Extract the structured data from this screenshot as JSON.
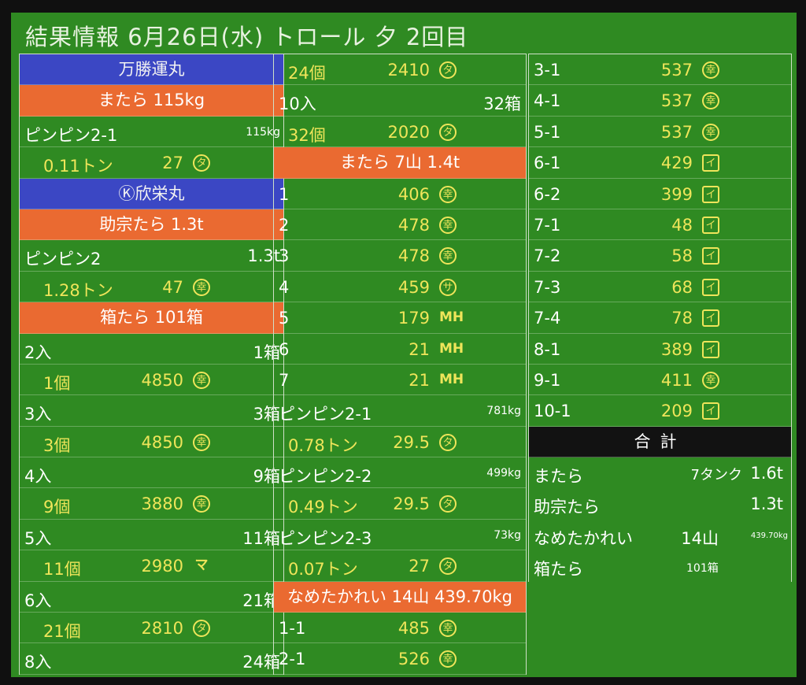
{
  "header": {
    "title": "結果情報 6月26日(水) トロール 夕 2回目"
  },
  "col1": [
    {
      "kind": "hdr",
      "style": "blue",
      "text": "万勝運丸"
    },
    {
      "kind": "hdr",
      "style": "orange",
      "text": "またら 115kg"
    },
    {
      "kind": "row",
      "a": "ピンピン2-1",
      "d": "115kg"
    },
    {
      "kind": "row",
      "b": "0.11トン",
      "c": "27",
      "icon": "タ",
      "iconShape": "circle"
    },
    {
      "kind": "hdr",
      "style": "blue",
      "text": "Ⓚ欣栄丸"
    },
    {
      "kind": "hdr",
      "style": "orange",
      "text": "助宗たら 1.3t"
    },
    {
      "kind": "row",
      "a": "ピンピン2",
      "d": "1.3t"
    },
    {
      "kind": "row",
      "b": "1.28トン",
      "c": "47",
      "icon": "幸",
      "iconShape": "circle"
    },
    {
      "kind": "hdr",
      "style": "orange",
      "text": "箱たら 101箱"
    },
    {
      "kind": "row",
      "a": "2入",
      "d": "1箱"
    },
    {
      "kind": "row",
      "b": "1個",
      "c": "4850",
      "icon": "幸",
      "iconShape": "circle"
    },
    {
      "kind": "row",
      "a": "3入",
      "d": "3箱"
    },
    {
      "kind": "row",
      "b": "3個",
      "c": "4850",
      "icon": "幸",
      "iconShape": "circle"
    },
    {
      "kind": "row",
      "a": "4入",
      "d": "9箱"
    },
    {
      "kind": "row",
      "b": "9個",
      "c": "3880",
      "icon": "幸",
      "iconShape": "circle"
    },
    {
      "kind": "row",
      "a": "5入",
      "d": "11箱"
    },
    {
      "kind": "row",
      "b": "11個",
      "c": "2980",
      "icon": "マ",
      "iconShape": "plain"
    },
    {
      "kind": "row",
      "a": "6入",
      "d": "21箱"
    },
    {
      "kind": "row",
      "b": "21個",
      "c": "2810",
      "icon": "タ",
      "iconShape": "circle"
    },
    {
      "kind": "row",
      "a": "8入",
      "d": "24箱"
    }
  ],
  "col2": [
    {
      "kind": "row",
      "b": "24個",
      "c": "2410",
      "icon": "タ",
      "iconShape": "circle"
    },
    {
      "kind": "row",
      "a": "10入",
      "d": "32箱"
    },
    {
      "kind": "row",
      "b": "32個",
      "c": "2020",
      "icon": "タ",
      "iconShape": "circle"
    },
    {
      "kind": "hdr",
      "style": "orange",
      "text": "またら 7山 1.4t"
    },
    {
      "kind": "row",
      "a": "1",
      "c": "406",
      "icon": "幸",
      "iconShape": "circle"
    },
    {
      "kind": "row",
      "a": "2",
      "c": "478",
      "icon": "幸",
      "iconShape": "circle"
    },
    {
      "kind": "row",
      "a": "3",
      "c": "478",
      "icon": "幸",
      "iconShape": "circle"
    },
    {
      "kind": "row",
      "a": "4",
      "c": "459",
      "icon": "サ",
      "iconShape": "circle"
    },
    {
      "kind": "row",
      "a": "5",
      "c": "179",
      "icon": "MH",
      "iconShape": "plain"
    },
    {
      "kind": "row",
      "a": "6",
      "c": "21",
      "icon": "MH",
      "iconShape": "plain"
    },
    {
      "kind": "row",
      "a": "7",
      "c": "21",
      "icon": "MH",
      "iconShape": "plain"
    },
    {
      "kind": "row",
      "a": "ピンピン2-1",
      "d": "781kg"
    },
    {
      "kind": "row",
      "b": "0.78トン",
      "c": "29.5",
      "icon": "タ",
      "iconShape": "circle"
    },
    {
      "kind": "row",
      "a": "ピンピン2-2",
      "d": "499kg"
    },
    {
      "kind": "row",
      "b": "0.49トン",
      "c": "29.5",
      "icon": "タ",
      "iconShape": "circle"
    },
    {
      "kind": "row",
      "a": "ピンピン2-3",
      "d": "73kg"
    },
    {
      "kind": "row",
      "b": "0.07トン",
      "c": "27",
      "icon": "タ",
      "iconShape": "circle"
    },
    {
      "kind": "hdr",
      "style": "orange",
      "text": "なめたかれい 14山 439.70kg"
    },
    {
      "kind": "row",
      "a": "1-1",
      "c": "485",
      "icon": "幸",
      "iconShape": "circle"
    },
    {
      "kind": "row",
      "a": "2-1",
      "c": "526",
      "icon": "幸",
      "iconShape": "circle"
    }
  ],
  "col3": [
    {
      "kind": "row",
      "a": "3-1",
      "c": "537",
      "icon": "幸",
      "iconShape": "circle"
    },
    {
      "kind": "row",
      "a": "4-1",
      "c": "537",
      "icon": "幸",
      "iconShape": "circle"
    },
    {
      "kind": "row",
      "a": "5-1",
      "c": "537",
      "icon": "幸",
      "iconShape": "circle"
    },
    {
      "kind": "row",
      "a": "6-1",
      "c": "429",
      "icon": "イ",
      "iconShape": "square"
    },
    {
      "kind": "row",
      "a": "6-2",
      "c": "399",
      "icon": "イ",
      "iconShape": "square"
    },
    {
      "kind": "row",
      "a": "7-1",
      "c": "48",
      "icon": "イ",
      "iconShape": "square"
    },
    {
      "kind": "row",
      "a": "7-2",
      "c": "58",
      "icon": "イ",
      "iconShape": "square"
    },
    {
      "kind": "row",
      "a": "7-3",
      "c": "68",
      "icon": "イ",
      "iconShape": "square"
    },
    {
      "kind": "row",
      "a": "7-4",
      "c": "78",
      "icon": "イ",
      "iconShape": "square"
    },
    {
      "kind": "row",
      "a": "8-1",
      "c": "389",
      "icon": "イ",
      "iconShape": "square"
    },
    {
      "kind": "row",
      "a": "9-1",
      "c": "411",
      "icon": "幸",
      "iconShape": "circle"
    },
    {
      "kind": "row",
      "a": "10-1",
      "c": "209",
      "icon": "イ",
      "iconShape": "square"
    },
    {
      "kind": "hdr",
      "style": "dark",
      "text": "合計"
    },
    {
      "kind": "total",
      "a": "またら",
      "m": "7タンク",
      "d": "1.6t"
    },
    {
      "kind": "total",
      "a": "助宗たら",
      "d": "1.3t"
    },
    {
      "kind": "total",
      "a": "なめたかれい",
      "m": "14山",
      "x": "439.70kg"
    },
    {
      "kind": "total",
      "a": "箱たら",
      "ms": "101箱"
    }
  ],
  "colors": {
    "board": "#2f8a22",
    "orange": "#ea6a31",
    "blue": "#3b47c4",
    "dark": "#121212",
    "yellow": "#efe55a",
    "white": "#ffffff"
  }
}
